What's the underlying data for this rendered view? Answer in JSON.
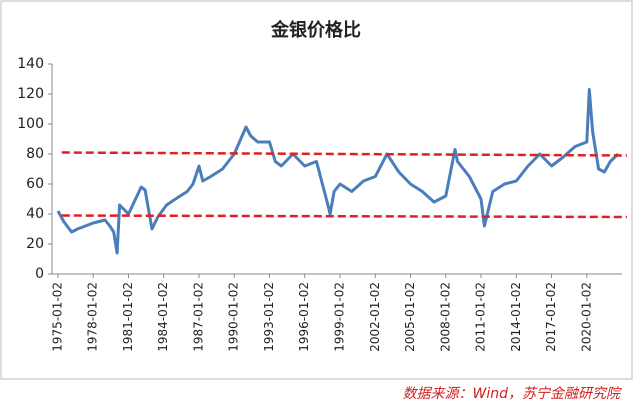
{
  "chart_data": {
    "type": "line",
    "title": "金银价格比",
    "source": "数据来源：Wind，苏宁金融研究院",
    "x": [
      "1975-01-02",
      "1975-07-01",
      "1976-03-01",
      "1976-09-01",
      "1978-01-02",
      "1979-01-02",
      "1979-06-01",
      "1979-10-01",
      "1980-01-15",
      "1980-04-01",
      "1981-01-02",
      "1982-02-01",
      "1982-06-01",
      "1983-01-02",
      "1983-07-01",
      "1984-04-01",
      "1985-01-02",
      "1986-01-02",
      "1986-07-01",
      "1987-01-02",
      "1987-05-01",
      "1988-01-02",
      "1989-01-02",
      "1990-01-02",
      "1991-01-02",
      "1991-06-01",
      "1992-01-02",
      "1993-01-02",
      "1993-07-01",
      "1994-01-02",
      "1995-01-02",
      "1996-01-02",
      "1997-01-02",
      "1998-01-02",
      "1998-03-01",
      "1998-07-01",
      "1999-01-02",
      "2000-01-02",
      "2001-01-02",
      "2002-01-02",
      "2003-01-02",
      "2004-01-02",
      "2005-01-02",
      "2006-01-02",
      "2007-01-02",
      "2008-01-02",
      "2008-10-15",
      "2009-01-02",
      "2010-01-02",
      "2011-01-02",
      "2011-04-15",
      "2012-01-02",
      "2013-01-02",
      "2014-01-02",
      "2015-01-02",
      "2016-01-02",
      "2017-01-02",
      "2018-01-02",
      "2019-01-02",
      "2020-01-02",
      "2020-03-20",
      "2020-07-01",
      "2021-01-02",
      "2021-07-01",
      "2022-01-02",
      "2022-09-01"
    ],
    "series": [
      {
        "name": "金银价格比",
        "color": "#4a7ebb",
        "values": [
          42,
          35,
          28,
          30,
          34,
          36,
          32,
          28,
          14,
          46,
          40,
          58,
          56,
          30,
          38,
          46,
          50,
          55,
          60,
          72,
          62,
          65,
          70,
          80,
          98,
          92,
          88,
          88,
          75,
          72,
          80,
          72,
          75,
          45,
          40,
          55,
          60,
          55,
          62,
          65,
          80,
          68,
          60,
          55,
          48,
          52,
          83,
          75,
          65,
          50,
          32,
          55,
          60,
          62,
          72,
          80,
          72,
          78,
          85,
          88,
          123,
          95,
          70,
          68,
          75,
          80
        ]
      }
    ],
    "reference_lines": [
      {
        "color": "#e02020",
        "x": [
          "1975-05-01",
          "2023-06-01"
        ],
        "values": [
          81,
          79
        ]
      },
      {
        "color": "#e02020",
        "x": [
          "1975-05-01",
          "2023-06-01"
        ],
        "values": [
          39,
          38
        ]
      }
    ],
    "xlim": [
      "1974-07-01",
      "2022-12-31"
    ],
    "xticks": [
      "1975-01-02",
      "1978-01-02",
      "1981-01-02",
      "1984-01-02",
      "1987-01-02",
      "1990-01-02",
      "1993-01-02",
      "1996-01-02",
      "1999-01-02",
      "2002-01-02",
      "2005-01-02",
      "2008-01-02",
      "2011-01-02",
      "2014-01-02",
      "2017-01-02",
      "2020-01-02"
    ],
    "ylim": [
      0,
      140
    ],
    "yticks": [
      0,
      20,
      40,
      60,
      80,
      100,
      120,
      140
    ]
  }
}
